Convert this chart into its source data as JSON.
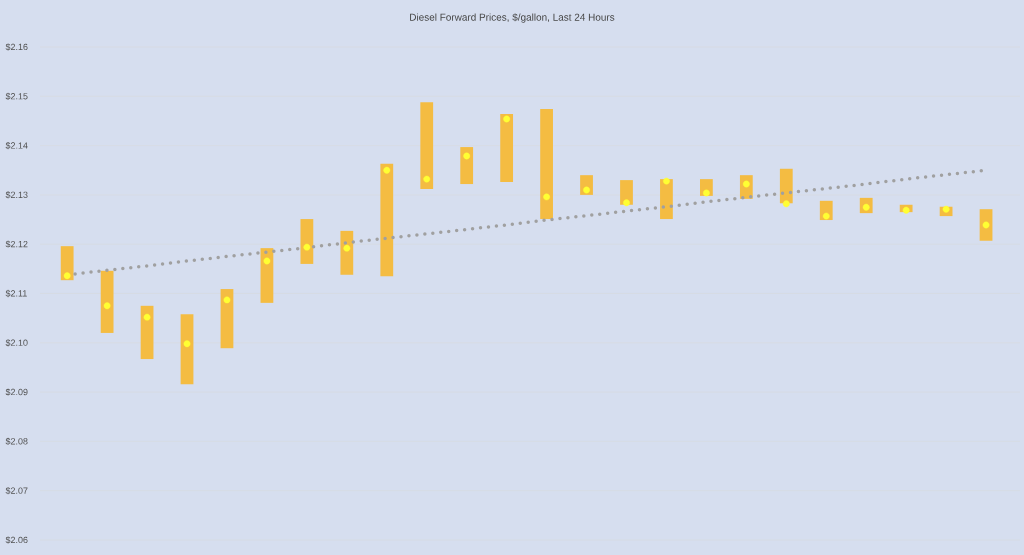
{
  "chart_data": {
    "type": "bar",
    "title": "Diesel Forward Prices, $/gallon, Last 24 Hours",
    "categories": [
      null,
      null,
      null,
      null,
      null,
      null,
      null,
      null,
      null,
      null,
      null,
      null,
      null,
      null,
      null,
      null,
      null,
      null,
      null,
      null,
      null,
      null,
      null,
      null
    ],
    "series": [
      {
        "color": "#f4bc42",
        "base": [
          2.1127,
          2.102,
          2.0967,
          2.0916,
          2.0989,
          2.1081,
          2.116,
          2.1138,
          2.1135,
          2.1312,
          2.1322,
          2.1326,
          2.1251,
          2.13,
          2.128,
          2.1251,
          2.1298,
          2.1292,
          2.1283,
          2.1249,
          2.1263,
          2.1265,
          2.1257,
          2.1207
        ],
        "values": [
          0.0069,
          0.0126,
          0.0108,
          0.0142,
          0.012,
          0.0111,
          0.0091,
          0.0089,
          0.0228,
          0.0176,
          0.0075,
          0.0138,
          0.0223,
          0.004,
          0.005,
          0.0081,
          0.0034,
          0.0048,
          0.007,
          0.0039,
          0.0031,
          0.0015,
          0.0019,
          0.0064
        ]
      },
      {
        "type": "scatter",
        "color": "#ffff33",
        "marker": "circle",
        "values": [
          2.1136,
          2.1075,
          2.1052,
          2.0998,
          2.1087,
          2.1166,
          2.1194,
          2.1192,
          2.135,
          2.1332,
          2.1379,
          2.1454,
          2.1296,
          2.131,
          2.1284,
          2.1328,
          2.1304,
          2.1322,
          2.1282,
          2.1257,
          2.1275,
          2.1269,
          2.1271,
          2.1239
        ]
      },
      {
        "type": "line",
        "color": "#a0a0a0",
        "line_style": "dotted",
        "values": [
          2.1138,
          2.1147,
          2.1156,
          2.1166,
          2.1175,
          2.1184,
          2.1193,
          2.1203,
          2.1212,
          2.1221,
          2.123,
          2.1239,
          2.1249,
          2.1258,
          2.1267,
          2.1276,
          2.1286,
          2.1295,
          2.1304,
          2.1313,
          2.1322,
          2.1332,
          2.1341,
          2.135
        ]
      }
    ],
    "ylim": [
      2.06,
      2.16
    ],
    "yticks": [
      {
        "value": 2.06,
        "label": "$2.06"
      },
      {
        "value": 2.07,
        "label": "$2.07"
      },
      {
        "value": 2.08,
        "label": "$2.08"
      },
      {
        "value": 2.09,
        "label": "$2.09"
      },
      {
        "value": 2.1,
        "label": "$2.10"
      },
      {
        "value": 2.11,
        "label": "$2.11"
      },
      {
        "value": 2.12,
        "label": "$2.12"
      },
      {
        "value": 2.13,
        "label": "$2.13"
      },
      {
        "value": 2.14,
        "label": "$2.14"
      },
      {
        "value": 2.15,
        "label": "$2.15"
      },
      {
        "value": 2.16,
        "label": "$2.16"
      }
    ],
    "grid": "y",
    "tick_labels": "y"
  }
}
